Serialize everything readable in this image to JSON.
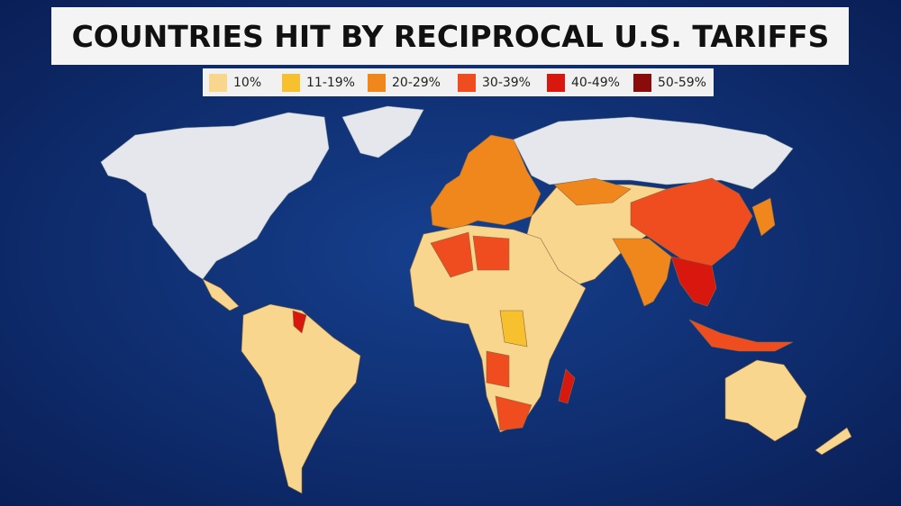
{
  "title": "COUNTRIES HIT BY RECIPROCAL U.S. TARIFFS",
  "legend": [
    {
      "label": "10%",
      "color": "#f8d68e"
    },
    {
      "label": "11-19%",
      "color": "#f6c02e"
    },
    {
      "label": "20-29%",
      "color": "#f0871d"
    },
    {
      "label": "30-39%",
      "color": "#ef4c1f"
    },
    {
      "label": "40-49%",
      "color": "#d8170f"
    },
    {
      "label": "50-59%",
      "color": "#8a0b0b"
    }
  ]
}
